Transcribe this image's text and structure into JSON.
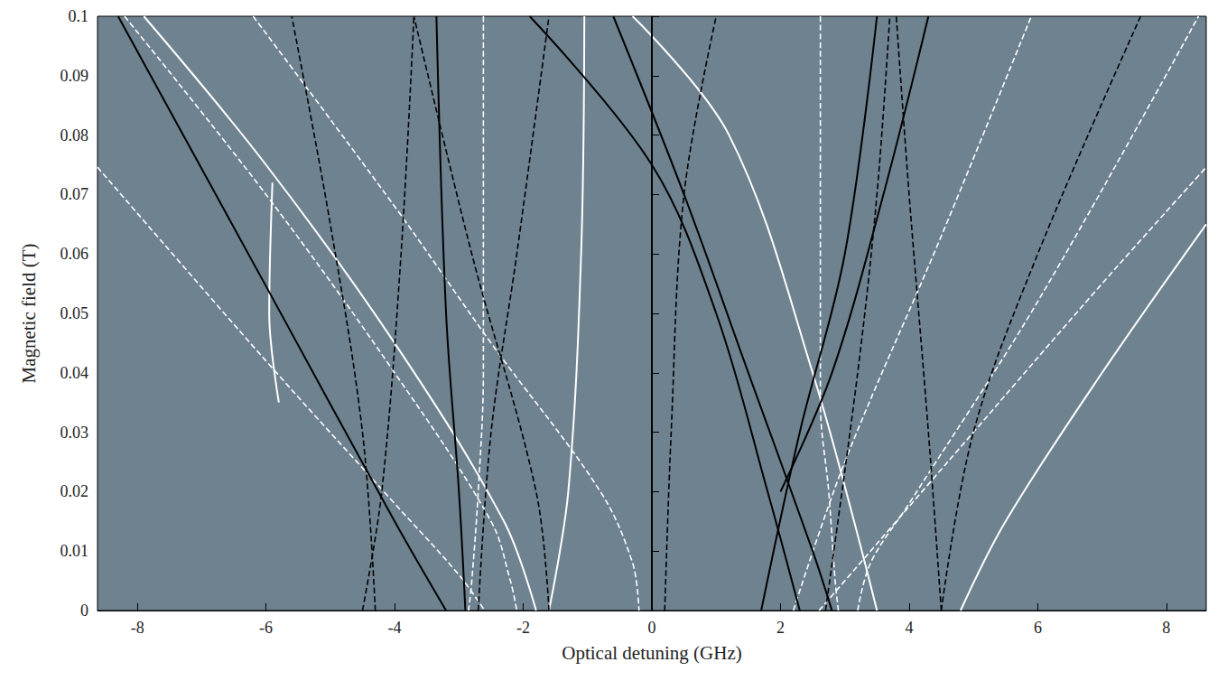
{
  "chart_data": {
    "type": "line",
    "x_label": "Optical detuning (GHz)",
    "y_label": "Magnetic field (T)",
    "xlim": [
      -8.62,
      8.62
    ],
    "xticks": [
      -8,
      -6,
      -4,
      -2,
      0,
      2,
      4,
      6,
      8
    ],
    "ylim": [
      0,
      0.1
    ],
    "yticks": [
      0,
      0.01,
      0.02,
      0.03,
      0.04,
      0.05,
      0.06,
      0.07,
      0.08,
      0.09,
      0.1
    ],
    "grid": false,
    "series": [
      {
        "color": "#ffffff",
        "line_style": "dashed",
        "x": [
          -8.62,
          -6,
          -4,
          -3,
          -2.6
        ],
        "values": [
          0.0746,
          0.042,
          0.018,
          0.006,
          0
        ]
      },
      {
        "color": "#ffffff",
        "line_style": "dashed",
        "x": [
          -8.2,
          -6,
          -4,
          -2.5,
          -2.2,
          -2.1
        ],
        "values": [
          0.1,
          0.07,
          0.04,
          0.015,
          0.005,
          0
        ]
      },
      {
        "color": "#ffffff",
        "line_style": "dashed",
        "x": [
          -6.2,
          -4,
          -2.5,
          -0.8,
          -0.3,
          -0.2
        ],
        "values": [
          0.1,
          0.068,
          0.045,
          0.02,
          0.008,
          0
        ]
      },
      {
        "color": "#ffffff",
        "line_style": "dashed",
        "x": [
          -2.62,
          -2.62,
          -2.7,
          -2.8,
          -2.85
        ],
        "values": [
          0.1,
          0.04,
          0.02,
          0.005,
          0
        ]
      },
      {
        "color": "#ffffff",
        "line_style": "dashed",
        "x": [
          2.62,
          2.62,
          2.75,
          2.85,
          2.9
        ],
        "values": [
          0.1,
          0.035,
          0.02,
          0.005,
          0
        ]
      },
      {
        "color": "#ffffff",
        "line_style": "dashed",
        "x": [
          3.2,
          3.4,
          4,
          6,
          8.5
        ],
        "values": [
          0,
          0.008,
          0.018,
          0.052,
          0.1
        ]
      },
      {
        "color": "#ffffff",
        "line_style": "dashed",
        "x": [
          2.2,
          3,
          4.5,
          5.9
        ],
        "values": [
          0,
          0.025,
          0.063,
          0.1
        ]
      },
      {
        "color": "#ffffff",
        "line_style": "dashed",
        "x": [
          2.6,
          5,
          7,
          8.62
        ],
        "values": [
          0,
          0.03,
          0.055,
          0.0746
        ]
      },
      {
        "color": "#ffffff",
        "line_style": "solid",
        "x": [
          -7.9,
          -6,
          -4,
          -2.3,
          -1.8
        ],
        "values": [
          0.1,
          0.075,
          0.045,
          0.015,
          0
        ]
      },
      {
        "color": "#ffffff",
        "line_style": "solid",
        "x": [
          -1.6,
          -1.3,
          -1.1,
          -1.05
        ],
        "values": [
          0,
          0.02,
          0.06,
          0.1
        ]
      },
      {
        "color": "#ffffff",
        "line_style": "solid",
        "x": [
          -0.3,
          1.2,
          2.5,
          3.5
        ],
        "values": [
          0.1,
          0.08,
          0.04,
          0
        ]
      },
      {
        "color": "#ffffff",
        "line_style": "solid",
        "x": [
          -5.9,
          -5.95,
          -5.8
        ],
        "values": [
          0.072,
          0.05,
          0.035
        ]
      },
      {
        "color": "#ffffff",
        "line_style": "solid",
        "x": [
          4.8,
          5.5,
          7,
          8.62
        ],
        "values": [
          0,
          0.015,
          0.04,
          0.065
        ]
      },
      {
        "color": "#000000",
        "line_style": "solid",
        "x": [
          -8.3,
          -5.9,
          -4,
          -3.2
        ],
        "values": [
          0.1,
          0.0526,
          0.015,
          0
        ]
      },
      {
        "color": "#000000",
        "line_style": "solid",
        "x": [
          -1.9,
          0,
          1,
          1.8,
          2.3
        ],
        "values": [
          0.1,
          0.075,
          0.05,
          0.02,
          0
        ]
      },
      {
        "color": "#000000",
        "line_style": "solid",
        "x": [
          0,
          0
        ],
        "values": [
          0,
          0.1
        ]
      },
      {
        "color": "#000000",
        "line_style": "solid",
        "x": [
          -0.6,
          0.5,
          1.5,
          2.5,
          2.8
        ],
        "values": [
          0.1,
          0.07,
          0.04,
          0.01,
          0
        ]
      },
      {
        "color": "#000000",
        "line_style": "solid",
        "x": [
          1.7,
          2.3,
          3,
          3.5
        ],
        "values": [
          0,
          0.03,
          0.06,
          0.1
        ]
      },
      {
        "color": "#000000",
        "line_style": "solid",
        "x": [
          4.3,
          3.6,
          2.8,
          2.0
        ],
        "values": [
          0.1,
          0.07,
          0.04,
          0.02
        ]
      },
      {
        "color": "#000000",
        "line_style": "solid",
        "x": [
          -3.35,
          -3.2,
          -3.0,
          -2.9
        ],
        "values": [
          0.1,
          0.05,
          0.02,
          0
        ]
      },
      {
        "color": "#000000",
        "line_style": "dashed",
        "x": [
          -4.5,
          -4.2,
          -3.9,
          -3.7
        ],
        "values": [
          0,
          0.02,
          0.06,
          0.1
        ]
      },
      {
        "color": "#000000",
        "line_style": "dashed",
        "x": [
          -4.3,
          -4.5,
          -5.0,
          -5.6
        ],
        "values": [
          0,
          0.03,
          0.065,
          0.1
        ]
      },
      {
        "color": "#000000",
        "line_style": "dashed",
        "x": [
          -1.6,
          -1.8,
          -2.8,
          -3.7
        ],
        "values": [
          0,
          0.02,
          0.06,
          0.1
        ]
      },
      {
        "color": "#000000",
        "line_style": "dashed",
        "x": [
          -2.7,
          -2.5,
          -2.1,
          -1.6
        ],
        "values": [
          0,
          0.03,
          0.06,
          0.1
        ]
      },
      {
        "color": "#000000",
        "line_style": "dashed",
        "x": [
          0.2,
          0.3,
          0.5,
          1.0
        ],
        "values": [
          0,
          0.03,
          0.07,
          0.1
        ]
      },
      {
        "color": "#000000",
        "line_style": "dashed",
        "x": [
          2.7,
          3.2,
          3.5,
          3.7
        ],
        "values": [
          0,
          0.04,
          0.07,
          0.1
        ]
      },
      {
        "color": "#000000",
        "line_style": "dashed",
        "x": [
          4.5,
          5.0,
          6.0,
          7.6
        ],
        "values": [
          0,
          0.03,
          0.06,
          0.1
        ]
      },
      {
        "color": "#000000",
        "line_style": "dashed",
        "x": [
          4.5,
          4.3,
          4.0,
          3.8
        ],
        "values": [
          0,
          0.03,
          0.07,
          0.1
        ]
      }
    ]
  }
}
